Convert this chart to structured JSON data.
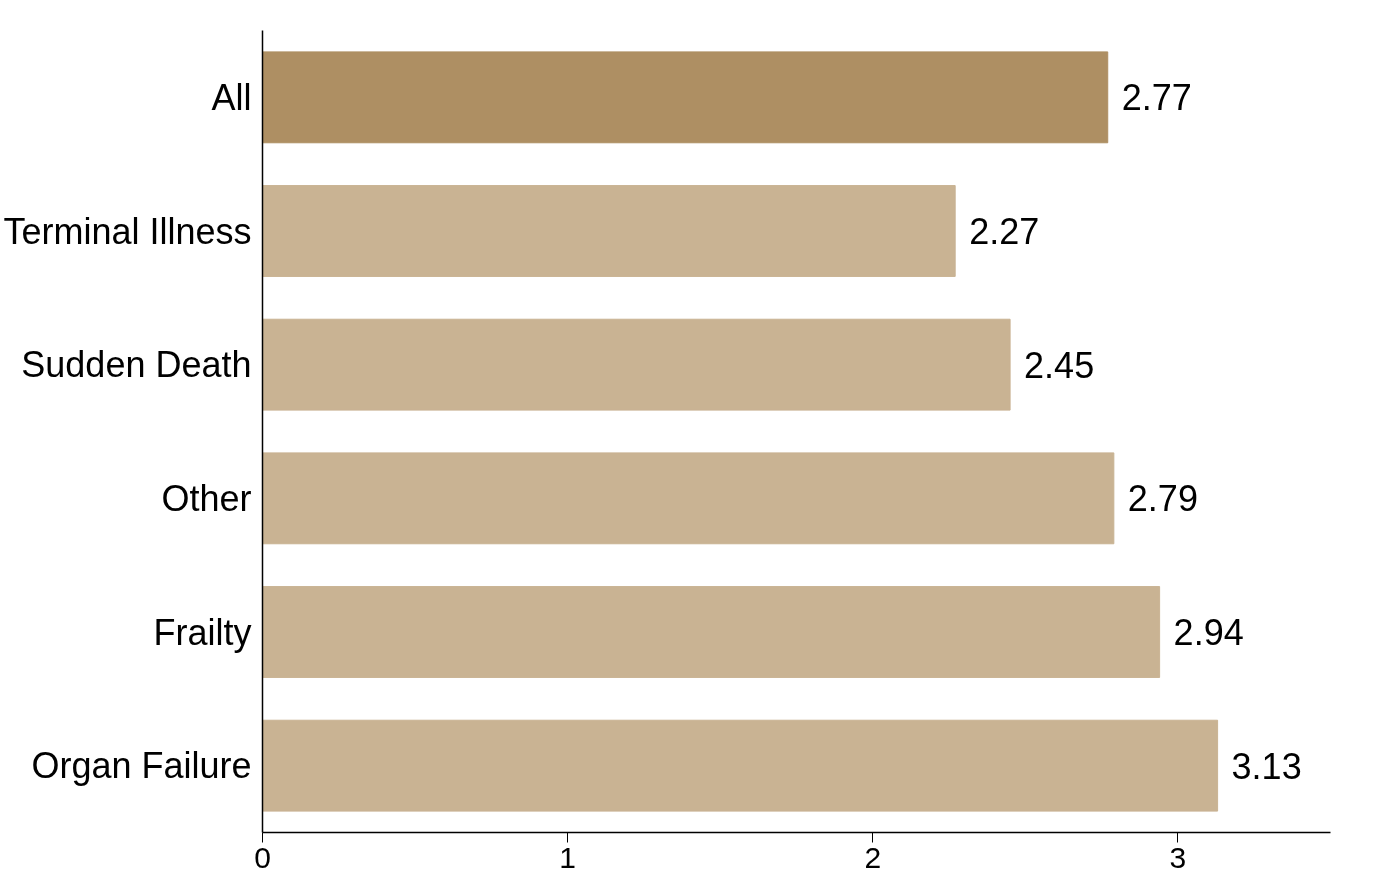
{
  "chart_data": {
    "type": "bar",
    "orientation": "horizontal",
    "categories": [
      "All",
      "Terminal Illness",
      "Sudden Death",
      "Other",
      "Frailty",
      "Organ Failure"
    ],
    "values": [
      2.77,
      2.27,
      2.45,
      2.79,
      2.94,
      3.13
    ],
    "colors": [
      "#ae8f63",
      "#c9b393",
      "#c9b393",
      "#c9b393",
      "#c9b393",
      "#c9b393"
    ],
    "xlim": [
      0,
      3.5
    ],
    "xticks": [
      0,
      1,
      2,
      3
    ],
    "data_labels": true,
    "grid": false
  }
}
